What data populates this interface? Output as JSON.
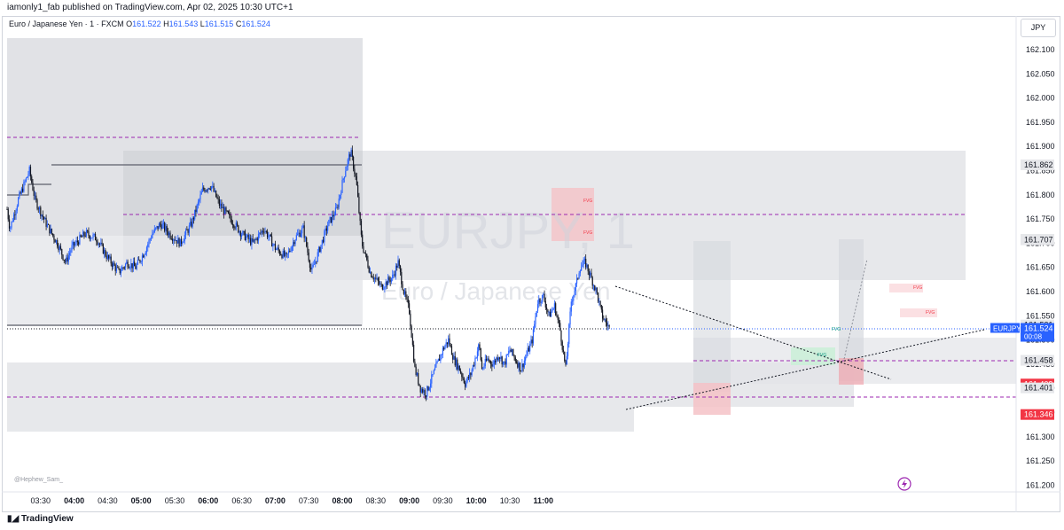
{
  "header": {
    "publish_line": "iamonly1_fab published on TradingView.com, Apr 02, 2025 10:30 UTC+1"
  },
  "legend": {
    "symbol_desc": "Euro / Japanese Yen · 1 · FXCM",
    "o_label": "O",
    "o_value": "161.522",
    "h_label": "H",
    "h_value": "161.543",
    "l_label": "L",
    "l_value": "161.515",
    "c_label": "C",
    "c_value": "161.524"
  },
  "currency_button": "JPY",
  "watermark": {
    "symbol": "EURJPY, 1",
    "name": "Euro / Japanese Yen"
  },
  "author_tag": "@Hephew_Sam_",
  "footer": {
    "brand": "TradingView"
  },
  "colors": {
    "up": "#2962ff",
    "down": "#131722",
    "zone": "#e3e4e8",
    "red_zone": "#f5c2c7",
    "green_zone": "#c8f0d6",
    "dashed_purple": "#9c27b0",
    "badge_blue": "#2962ff",
    "badge_red": "#f23645",
    "badge_gray": "#e6e7ea"
  },
  "chart_data": {
    "type": "candlestick",
    "symbol": "EURJPY",
    "ylim": [
      161.15,
      162.15
    ],
    "y_ticks": [
      "162.100",
      "162.050",
      "162.000",
      "161.950",
      "161.900",
      "161.850",
      "161.800",
      "161.750",
      "161.700",
      "161.650",
      "161.600",
      "161.550",
      "161.500",
      "161.450",
      "161.400",
      "161.350",
      "161.300",
      "161.250",
      "161.200"
    ],
    "x_ticks": [
      {
        "label": "03:30",
        "bold": false
      },
      {
        "label": "04:00",
        "bold": true
      },
      {
        "label": "04:30",
        "bold": false
      },
      {
        "label": "05:00",
        "bold": true
      },
      {
        "label": "05:30",
        "bold": false
      },
      {
        "label": "06:00",
        "bold": true
      },
      {
        "label": "06:30",
        "bold": false
      },
      {
        "label": "07:00",
        "bold": true
      },
      {
        "label": "07:30",
        "bold": false
      },
      {
        "label": "08:00",
        "bold": true
      },
      {
        "label": "08:30",
        "bold": false
      },
      {
        "label": "09:00",
        "bold": true
      },
      {
        "label": "09:30",
        "bold": false
      },
      {
        "label": "10:00",
        "bold": true
      },
      {
        "label": "10:30",
        "bold": false
      },
      {
        "label": "11:00",
        "bold": true
      }
    ],
    "close_path": [
      [
        0,
        161.77
      ],
      [
        0.5,
        161.73
      ],
      [
        2,
        161.79
      ],
      [
        4,
        161.85
      ],
      [
        5,
        161.79
      ],
      [
        7,
        161.74
      ],
      [
        9,
        161.7
      ],
      [
        10.5,
        161.66
      ],
      [
        11.5,
        161.69
      ],
      [
        14,
        161.72
      ],
      [
        16,
        161.71
      ],
      [
        18,
        161.67
      ],
      [
        20,
        161.64
      ],
      [
        21.5,
        161.66
      ],
      [
        23,
        161.65
      ],
      [
        24.5,
        161.68
      ],
      [
        26,
        161.72
      ],
      [
        27.5,
        161.74
      ],
      [
        29,
        161.72
      ],
      [
        31,
        161.7
      ],
      [
        33,
        161.74
      ],
      [
        35,
        161.81
      ],
      [
        36.5,
        161.82
      ],
      [
        38,
        161.78
      ],
      [
        40,
        161.75
      ],
      [
        42,
        161.72
      ],
      [
        44,
        161.7
      ],
      [
        46,
        161.73
      ],
      [
        48,
        161.69
      ],
      [
        50,
        161.67
      ],
      [
        51.5,
        161.71
      ],
      [
        53,
        161.73
      ],
      [
        54.5,
        161.64
      ],
      [
        56,
        161.69
      ],
      [
        57.5,
        161.74
      ],
      [
        59,
        161.77
      ],
      [
        60.5,
        161.85
      ],
      [
        61.5,
        161.89
      ],
      [
        62.5,
        161.83
      ],
      [
        63.5,
        161.7
      ],
      [
        65,
        161.64
      ],
      [
        67,
        161.61
      ],
      [
        69,
        161.63
      ],
      [
        70,
        161.66
      ],
      [
        71,
        161.6
      ],
      [
        72,
        161.56
      ],
      [
        73,
        161.44
      ],
      [
        74,
        161.4
      ],
      [
        75,
        161.39
      ],
      [
        76,
        161.42
      ],
      [
        77,
        161.45
      ],
      [
        78,
        161.48
      ],
      [
        79,
        161.5
      ],
      [
        80,
        161.46
      ],
      [
        81,
        161.44
      ],
      [
        82,
        161.41
      ],
      [
        83,
        161.43
      ],
      [
        84,
        161.47
      ],
      [
        84.5,
        161.49
      ],
      [
        85,
        161.44
      ],
      [
        86,
        161.46
      ],
      [
        87,
        161.45
      ],
      [
        88,
        161.47
      ],
      [
        89,
        161.45
      ],
      [
        90,
        161.48
      ],
      [
        91,
        161.46
      ],
      [
        92,
        161.44
      ],
      [
        93,
        161.47
      ],
      [
        94,
        161.5
      ],
      [
        95,
        161.58
      ],
      [
        96,
        161.59
      ],
      [
        97,
        161.55
      ],
      [
        98,
        161.57
      ],
      [
        99,
        161.52
      ],
      [
        100,
        161.44
      ],
      [
        101,
        161.58
      ],
      [
        102,
        161.62
      ],
      [
        102.5,
        161.65
      ],
      [
        103.5,
        161.66
      ],
      [
        104.5,
        161.63
      ],
      [
        105.5,
        161.6
      ],
      [
        106.5,
        161.55
      ],
      [
        107.5,
        161.53
      ],
      [
        108,
        161.52
      ]
    ],
    "slot_start": "03:00",
    "minutes_per_slot": 5,
    "price_badges": [
      {
        "label": "161.862",
        "price": 161.862,
        "style": "gray"
      },
      {
        "label": "161.708",
        "price": 161.708,
        "style": "gray"
      },
      {
        "label": "161.707",
        "price": 161.707,
        "style": "gray"
      },
      {
        "label": "161.531",
        "price": 161.531,
        "style": "gray"
      },
      {
        "label": "161.524",
        "price": 161.524,
        "style": "blue",
        "symbol": "EURJPY",
        "timer": "00:08"
      },
      {
        "label": "161.458",
        "price": 161.458,
        "style": "gray"
      },
      {
        "label": "161.409",
        "price": 161.409,
        "style": "red"
      },
      {
        "label": "161.401",
        "price": 161.401,
        "style": "gray"
      },
      {
        "label": "161.346",
        "price": 161.346,
        "style": "red"
      }
    ],
    "fvg_labels": [
      "FVG",
      "FVG",
      "FVG",
      "FVG",
      "FVG",
      "FVG"
    ]
  }
}
